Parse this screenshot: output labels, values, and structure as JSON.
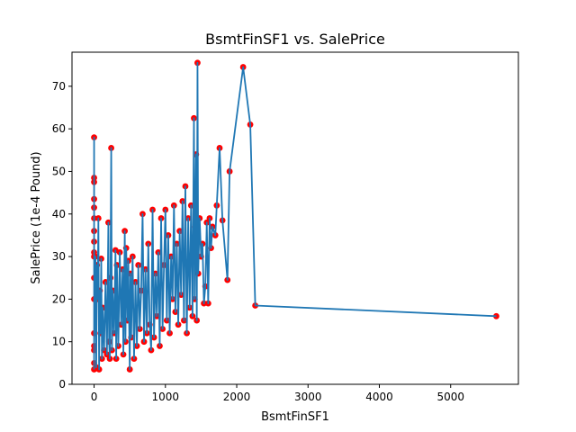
{
  "chart_data": {
    "type": "scatter",
    "title": "BsmtFinSF1 vs. SalePrice",
    "xlabel": "BsmtFinSF1",
    "ylabel": "SalePrice (1e-4 Pound)",
    "xlim": [
      -310,
      5950
    ],
    "ylim": [
      0,
      78
    ],
    "xticks": [
      0,
      1000,
      2000,
      3000,
      4000,
      5000
    ],
    "yticks": [
      0,
      10,
      20,
      30,
      40,
      50,
      60,
      70
    ],
    "grid": false,
    "legend": "none",
    "colors": {
      "points": "#ff0000",
      "line": "#1f77b4"
    },
    "series": [
      {
        "values": [
          [
            0,
            3.5
          ],
          [
            0,
            58.0
          ],
          [
            0,
            48.5
          ],
          [
            0,
            47.5
          ],
          [
            0,
            43.5
          ],
          [
            0,
            41.5
          ],
          [
            0,
            39.0
          ],
          [
            0,
            36.0
          ],
          [
            0,
            33.5
          ],
          [
            0,
            30.0
          ],
          [
            0,
            5.0
          ],
          [
            0,
            25.0
          ],
          [
            0,
            8.0
          ],
          [
            0,
            20.0
          ],
          [
            0,
            12.0
          ],
          [
            0,
            31.0
          ],
          [
            0,
            9.0
          ],
          [
            20,
            30.0
          ],
          [
            30,
            4.0
          ],
          [
            40,
            28.0
          ],
          [
            50,
            20.0
          ],
          [
            60,
            39.0
          ],
          [
            70,
            3.5
          ],
          [
            80,
            22.0
          ],
          [
            90,
            12.0
          ],
          [
            100,
            29.5
          ],
          [
            110,
            6.0
          ],
          [
            120,
            18.0
          ],
          [
            140,
            8.0
          ],
          [
            160,
            24.0
          ],
          [
            180,
            7.0
          ],
          [
            200,
            38.0
          ],
          [
            210,
            10.0
          ],
          [
            220,
            6.0
          ],
          [
            230,
            25.0
          ],
          [
            240,
            55.5
          ],
          [
            250,
            8.0
          ],
          [
            260,
            22.0
          ],
          [
            280,
            12.0
          ],
          [
            300,
            31.5
          ],
          [
            310,
            6.0
          ],
          [
            320,
            28.0
          ],
          [
            340,
            9.0
          ],
          [
            360,
            31.0
          ],
          [
            380,
            14.0
          ],
          [
            400,
            27.0
          ],
          [
            410,
            7.0
          ],
          [
            420,
            19.0
          ],
          [
            430,
            36.0
          ],
          [
            440,
            10.0
          ],
          [
            450,
            32.0
          ],
          [
            470,
            15.0
          ],
          [
            480,
            29.0
          ],
          [
            500,
            3.5
          ],
          [
            510,
            26.0
          ],
          [
            520,
            11.0
          ],
          [
            540,
            30.0
          ],
          [
            560,
            6.0
          ],
          [
            580,
            24.0
          ],
          [
            600,
            9.0
          ],
          [
            620,
            28.0
          ],
          [
            640,
            13.0
          ],
          [
            660,
            22.0
          ],
          [
            680,
            40.0
          ],
          [
            700,
            10.0
          ],
          [
            720,
            27.0
          ],
          [
            740,
            12.0
          ],
          [
            760,
            33.0
          ],
          [
            780,
            14.0
          ],
          [
            800,
            8.0
          ],
          [
            820,
            41.0
          ],
          [
            840,
            11.0
          ],
          [
            860,
            26.0
          ],
          [
            880,
            16.0
          ],
          [
            900,
            31.0
          ],
          [
            920,
            9.0
          ],
          [
            940,
            39.0
          ],
          [
            960,
            13.0
          ],
          [
            980,
            28.0
          ],
          [
            1000,
            41.0
          ],
          [
            1020,
            15.0
          ],
          [
            1040,
            35.0
          ],
          [
            1060,
            12.0
          ],
          [
            1080,
            30.0
          ],
          [
            1100,
            20.0
          ],
          [
            1120,
            42.0
          ],
          [
            1140,
            17.0
          ],
          [
            1160,
            33.0
          ],
          [
            1180,
            14.0
          ],
          [
            1200,
            36.0
          ],
          [
            1220,
            21.0
          ],
          [
            1240,
            43.0
          ],
          [
            1260,
            15.0
          ],
          [
            1280,
            46.5
          ],
          [
            1300,
            12.0
          ],
          [
            1320,
            39.0
          ],
          [
            1340,
            18.0
          ],
          [
            1360,
            42.0
          ],
          [
            1380,
            16.0
          ],
          [
            1400,
            62.5
          ],
          [
            1410,
            20.0
          ],
          [
            1420,
            37.0
          ],
          [
            1430,
            54.0
          ],
          [
            1440,
            15.0
          ],
          [
            1450,
            75.5
          ],
          [
            1460,
            26.0
          ],
          [
            1480,
            39.0
          ],
          [
            1500,
            30.0
          ],
          [
            1520,
            33.0
          ],
          [
            1540,
            19.0
          ],
          [
            1560,
            23.0
          ],
          [
            1580,
            38.0
          ],
          [
            1600,
            19.0
          ],
          [
            1620,
            39.0
          ],
          [
            1640,
            32.0
          ],
          [
            1660,
            37.0
          ],
          [
            1700,
            35.0
          ],
          [
            1720,
            42.0
          ],
          [
            1760,
            55.5
          ],
          [
            1800,
            38.5
          ],
          [
            1870,
            24.5
          ],
          [
            1900,
            50.0
          ],
          [
            2090,
            74.5
          ],
          [
            2190,
            61.0
          ],
          [
            2260,
            18.5
          ],
          [
            5640,
            16.0
          ]
        ]
      }
    ]
  }
}
